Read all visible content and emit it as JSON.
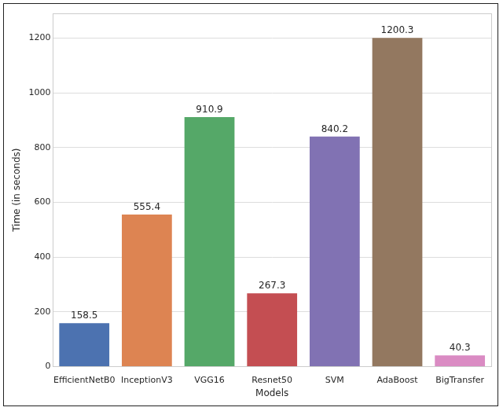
{
  "chart_data": {
    "type": "bar",
    "x_label": "Models",
    "y_label": "Time (in seconds)",
    "categories": [
      "EfficientNetB0",
      "InceptionV3",
      "VGG16",
      "Resnet50",
      "SVM",
      "AdaBoost",
      "BigTransfer"
    ],
    "values": [
      158.5,
      555.4,
      910.9,
      267.3,
      840.2,
      1200.3,
      40.3
    ],
    "colors": [
      "#4c72b0",
      "#dd8452",
      "#55a868",
      "#c44e52",
      "#8172b3",
      "#937860",
      "#da8bc3"
    ],
    "ylim": [
      0,
      1290
    ],
    "yticks": [
      0,
      200,
      400,
      600,
      800,
      1000,
      1200
    ],
    "grid": true,
    "data_labels": true
  }
}
